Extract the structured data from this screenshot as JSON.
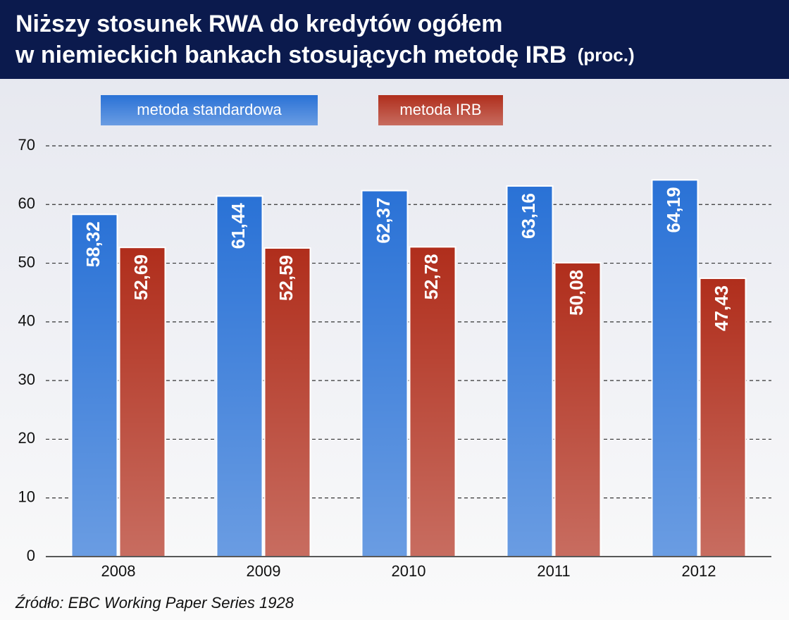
{
  "chart_data": {
    "type": "bar",
    "title": [
      "Niższy stosunek RWA do kredytów ogółem",
      "w niemieckich bankach stosujących metodę IRB"
    ],
    "unit": "(proc.)",
    "source": "Źródło: EBC Working Paper Series 1928",
    "categories": [
      "2008",
      "2009",
      "2010",
      "2011",
      "2012"
    ],
    "series": [
      {
        "name": "metoda standardowa",
        "color": "#2a72d6",
        "values": [
          58.32,
          61.44,
          62.37,
          63.16,
          64.19
        ],
        "value_labels": [
          "58,32",
          "61,44",
          "62,37",
          "63,16",
          "64,19"
        ]
      },
      {
        "name": "metoda IRB",
        "color": "#b02e1c",
        "values": [
          52.69,
          52.59,
          52.78,
          50.08,
          47.43
        ],
        "value_labels": [
          "52,69",
          "52,59",
          "52,78",
          "50,08",
          "47,43"
        ]
      }
    ],
    "ylim": [
      0,
      70
    ],
    "yticks": [
      0,
      10,
      20,
      30,
      40,
      50,
      60,
      70
    ],
    "grid": true
  }
}
